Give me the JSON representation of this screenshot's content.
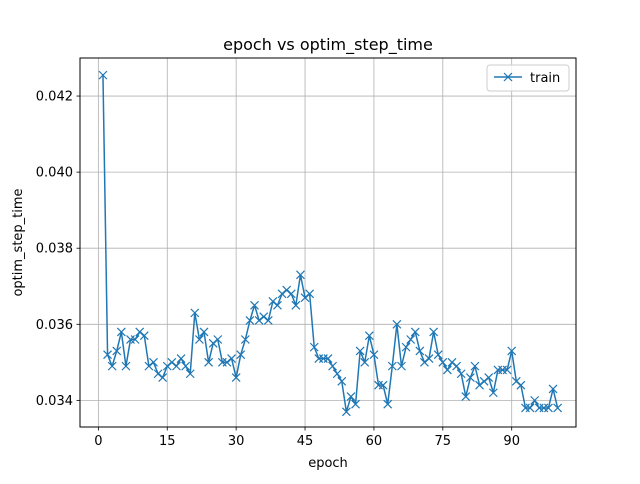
{
  "chart_data": {
    "type": "line",
    "title": "epoch vs optim_step_time",
    "xlabel": "epoch",
    "ylabel": "optim_step_time",
    "xlim": [
      -4,
      104
    ],
    "ylim": [
      0.0333,
      0.043
    ],
    "xticks": [
      0,
      15,
      30,
      45,
      60,
      75,
      90
    ],
    "yticks": [
      0.034,
      0.036,
      0.038,
      0.04,
      0.042
    ],
    "ytick_labels": [
      "0.034",
      "0.036",
      "0.038",
      "0.040",
      "0.042"
    ],
    "grid": true,
    "legend_position": "top-right",
    "series": [
      {
        "name": "train",
        "color": "#1f77b4",
        "marker": "x",
        "x": [
          1,
          2,
          3,
          4,
          5,
          6,
          7,
          8,
          9,
          10,
          11,
          12,
          13,
          14,
          15,
          16,
          17,
          18,
          19,
          20,
          21,
          22,
          23,
          24,
          25,
          26,
          27,
          28,
          29,
          30,
          31,
          32,
          33,
          34,
          35,
          36,
          37,
          38,
          39,
          40,
          41,
          42,
          43,
          44,
          45,
          46,
          47,
          48,
          49,
          50,
          51,
          52,
          53,
          54,
          55,
          56,
          57,
          58,
          59,
          60,
          61,
          62,
          63,
          64,
          65,
          66,
          67,
          68,
          69,
          70,
          71,
          72,
          73,
          74,
          75,
          76,
          77,
          78,
          79,
          80,
          81,
          82,
          83,
          84,
          85,
          86,
          87,
          88,
          89,
          90,
          91,
          92,
          93,
          94,
          95,
          96,
          97,
          98,
          99,
          100
        ],
        "values": [
          0.04255,
          0.0352,
          0.0349,
          0.0353,
          0.0358,
          0.0349,
          0.0356,
          0.0356,
          0.0358,
          0.0357,
          0.0349,
          0.035,
          0.0347,
          0.0346,
          0.0349,
          0.035,
          0.0349,
          0.0351,
          0.0349,
          0.0347,
          0.0363,
          0.0356,
          0.0358,
          0.035,
          0.0355,
          0.0356,
          0.035,
          0.035,
          0.0351,
          0.0346,
          0.0352,
          0.0356,
          0.0361,
          0.0365,
          0.0361,
          0.0362,
          0.0361,
          0.0366,
          0.0365,
          0.0368,
          0.0369,
          0.0368,
          0.0365,
          0.0373,
          0.0367,
          0.0368,
          0.0354,
          0.0351,
          0.0351,
          0.0351,
          0.0349,
          0.0347,
          0.0345,
          0.0337,
          0.0341,
          0.0339,
          0.0353,
          0.035,
          0.0357,
          0.0352,
          0.0344,
          0.0344,
          0.0339,
          0.0349,
          0.036,
          0.0349,
          0.0354,
          0.0356,
          0.0358,
          0.0353,
          0.035,
          0.0351,
          0.0358,
          0.0352,
          0.035,
          0.0348,
          0.035,
          0.0349,
          0.0347,
          0.0341,
          0.0346,
          0.0349,
          0.0344,
          0.0345,
          0.0346,
          0.0342,
          0.0348,
          0.0348,
          0.0348,
          0.0353,
          0.0345,
          0.0344,
          0.0338,
          0.0338,
          0.034,
          0.0338,
          0.0338,
          0.0338,
          0.0343,
          0.0338
        ]
      }
    ]
  }
}
